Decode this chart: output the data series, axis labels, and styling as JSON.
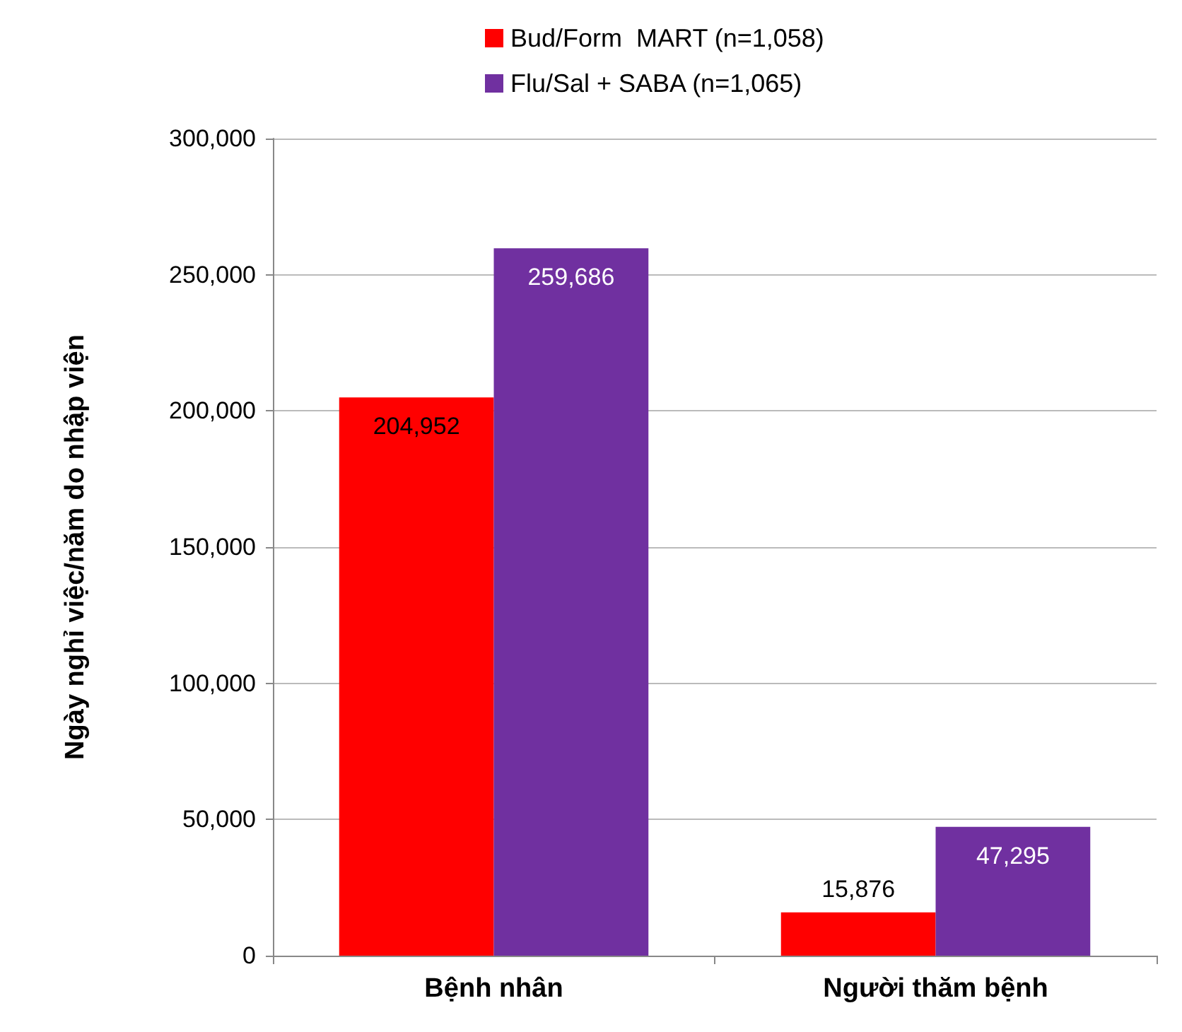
{
  "chart_data": {
    "type": "bar",
    "ylabel": "Ngày nghỉ việc/năm do nhập viện",
    "categories": [
      "Bệnh nhân",
      "Người thăm bệnh"
    ],
    "series": [
      {
        "name": "Bud/Form  MART (n=1,058)",
        "color": "#ff0000",
        "values": [
          204952,
          15876
        ],
        "value_labels": [
          "204,952",
          "15,876"
        ]
      },
      {
        "name": "Flu/Sal + SABA (n=1,065)",
        "color": "#7030a0",
        "values": [
          259686,
          47295
        ],
        "value_labels": [
          "259,686",
          "47,295"
        ]
      }
    ],
    "ylim": [
      0,
      300000
    ],
    "yticks": [
      {
        "value": 0,
        "label": "0"
      },
      {
        "value": 50000,
        "label": "50,000"
      },
      {
        "value": 100000,
        "label": "100,000"
      },
      {
        "value": 150000,
        "label": "150,000"
      },
      {
        "value": 200000,
        "label": "200,000"
      },
      {
        "value": 250000,
        "label": "250,000"
      },
      {
        "value": 300000,
        "label": "300,000"
      }
    ],
    "grid": "y",
    "legend": "top"
  }
}
